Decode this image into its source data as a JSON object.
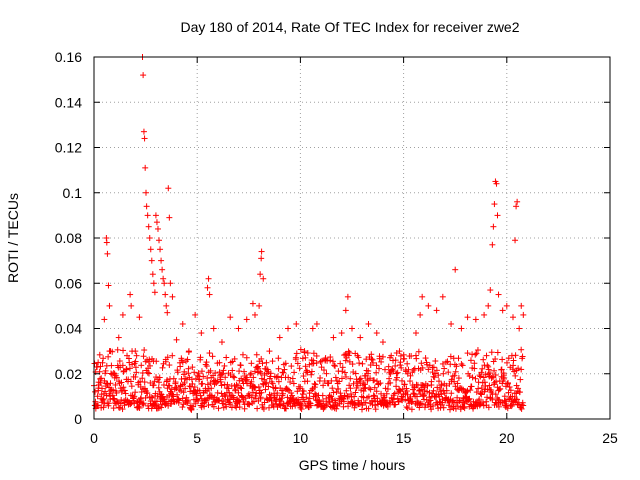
{
  "chart_data": {
    "type": "scatter",
    "title": "Day 180 of 2014, Rate Of TEC Index for receiver zwe2",
    "xlabel": "GPS time / hours",
    "ylabel": "ROTI / TECUs",
    "xlim": [
      0,
      25
    ],
    "ylim": [
      0,
      0.16
    ],
    "x_ticks": [
      0,
      5,
      10,
      15,
      20,
      25
    ],
    "x_tick_labels": [
      "0",
      "5",
      "10",
      "15",
      "20",
      "25"
    ],
    "y_ticks": [
      0,
      0.02,
      0.04,
      0.06,
      0.08,
      0.1,
      0.12,
      0.14,
      0.16
    ],
    "y_tick_labels": [
      "0",
      "0.02",
      "0.04",
      "0.06",
      "0.08",
      "0.1",
      "0.12",
      "0.14",
      "0.16"
    ],
    "grid": true,
    "marker": "+",
    "color": "#ff0000",
    "series": [
      {
        "name": "ROTI",
        "points": [
          [
            0.05,
            0.012
          ],
          [
            0.2,
            0.025
          ],
          [
            0.35,
            0.018
          ],
          [
            0.5,
            0.044
          ],
          [
            0.6,
            0.08
          ],
          [
            0.62,
            0.078
          ],
          [
            0.65,
            0.073
          ],
          [
            0.7,
            0.059
          ],
          [
            0.75,
            0.05
          ],
          [
            0.8,
            0.03
          ],
          [
            1.0,
            0.02
          ],
          [
            1.2,
            0.036
          ],
          [
            1.4,
            0.046
          ],
          [
            1.6,
            0.028
          ],
          [
            1.75,
            0.055
          ],
          [
            1.8,
            0.05
          ],
          [
            2.0,
            0.03
          ],
          [
            2.2,
            0.045
          ],
          [
            2.35,
            0.16
          ],
          [
            2.38,
            0.152
          ],
          [
            2.42,
            0.127
          ],
          [
            2.45,
            0.124
          ],
          [
            2.48,
            0.111
          ],
          [
            2.52,
            0.1
          ],
          [
            2.55,
            0.094
          ],
          [
            2.6,
            0.09
          ],
          [
            2.65,
            0.085
          ],
          [
            2.7,
            0.08
          ],
          [
            2.75,
            0.075
          ],
          [
            2.8,
            0.07
          ],
          [
            2.85,
            0.064
          ],
          [
            2.9,
            0.06
          ],
          [
            2.95,
            0.056
          ],
          [
            3.0,
            0.09
          ],
          [
            3.05,
            0.087
          ],
          [
            3.1,
            0.084
          ],
          [
            3.15,
            0.079
          ],
          [
            3.2,
            0.075
          ],
          [
            3.25,
            0.07
          ],
          [
            3.3,
            0.066
          ],
          [
            3.35,
            0.062
          ],
          [
            3.4,
            0.06
          ],
          [
            3.45,
            0.055
          ],
          [
            3.5,
            0.05
          ],
          [
            3.55,
            0.047
          ],
          [
            3.6,
            0.102
          ],
          [
            3.65,
            0.089
          ],
          [
            3.7,
            0.06
          ],
          [
            3.8,
            0.054
          ],
          [
            4.0,
            0.035
          ],
          [
            4.3,
            0.042
          ],
          [
            4.6,
            0.03
          ],
          [
            4.9,
            0.046
          ],
          [
            5.2,
            0.038
          ],
          [
            5.5,
            0.058
          ],
          [
            5.55,
            0.062
          ],
          [
            5.6,
            0.055
          ],
          [
            5.8,
            0.04
          ],
          [
            6.2,
            0.034
          ],
          [
            6.6,
            0.045
          ],
          [
            7.0,
            0.04
          ],
          [
            7.4,
            0.044
          ],
          [
            7.7,
            0.051
          ],
          [
            7.8,
            0.046
          ],
          [
            8.0,
            0.05
          ],
          [
            8.05,
            0.064
          ],
          [
            8.1,
            0.071
          ],
          [
            8.12,
            0.074
          ],
          [
            8.2,
            0.062
          ],
          [
            8.5,
            0.03
          ],
          [
            9.0,
            0.036
          ],
          [
            9.4,
            0.04
          ],
          [
            9.8,
            0.042
          ],
          [
            10.2,
            0.03
          ],
          [
            10.6,
            0.04
          ],
          [
            10.8,
            0.042
          ],
          [
            11.2,
            0.026
          ],
          [
            11.6,
            0.036
          ],
          [
            12.0,
            0.038
          ],
          [
            12.2,
            0.048
          ],
          [
            12.3,
            0.054
          ],
          [
            12.5,
            0.04
          ],
          [
            12.9,
            0.036
          ],
          [
            13.3,
            0.042
          ],
          [
            13.7,
            0.038
          ],
          [
            14.0,
            0.034
          ],
          [
            14.4,
            0.028
          ],
          [
            14.8,
            0.03
          ],
          [
            15.2,
            0.02
          ],
          [
            15.6,
            0.038
          ],
          [
            15.8,
            0.046
          ],
          [
            15.9,
            0.054
          ],
          [
            16.2,
            0.05
          ],
          [
            16.6,
            0.048
          ],
          [
            16.9,
            0.054
          ],
          [
            17.3,
            0.042
          ],
          [
            17.5,
            0.066
          ],
          [
            17.8,
            0.04
          ],
          [
            18.1,
            0.045
          ],
          [
            18.5,
            0.044
          ],
          [
            18.9,
            0.046
          ],
          [
            19.1,
            0.05
          ],
          [
            19.2,
            0.057
          ],
          [
            19.3,
            0.077
          ],
          [
            19.35,
            0.085
          ],
          [
            19.4,
            0.095
          ],
          [
            19.45,
            0.105
          ],
          [
            19.5,
            0.104
          ],
          [
            19.55,
            0.09
          ],
          [
            19.6,
            0.055
          ],
          [
            19.8,
            0.048
          ],
          [
            20.0,
            0.05
          ],
          [
            20.3,
            0.045
          ],
          [
            20.4,
            0.079
          ],
          [
            20.45,
            0.094
          ],
          [
            20.5,
            0.096
          ],
          [
            20.6,
            0.04
          ],
          [
            20.7,
            0.05
          ],
          [
            20.8,
            0.046
          ]
        ]
      }
    ],
    "band": {
      "description": "dense baseline of ROTI values between roughly 0.004 and 0.03 TECU/min from 0 to 20.8 h",
      "x_range": [
        0,
        20.8
      ],
      "y_range": [
        0.004,
        0.03
      ]
    }
  }
}
